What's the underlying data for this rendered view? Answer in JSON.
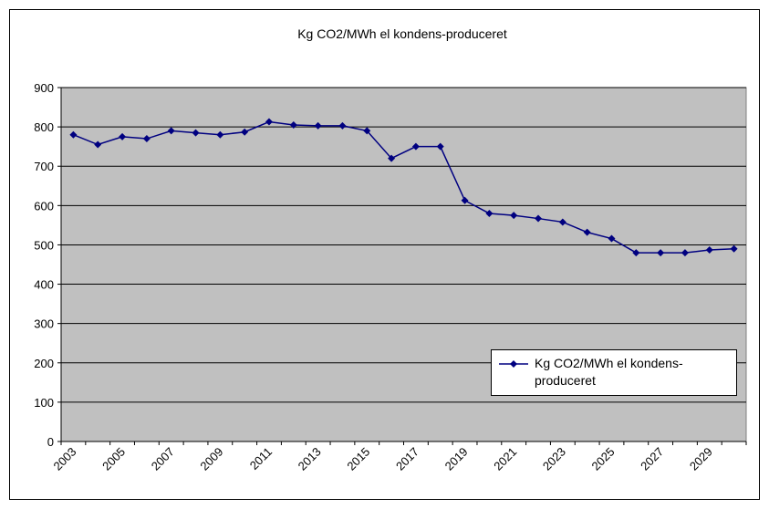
{
  "chart_data": {
    "type": "line",
    "title": "Kg CO2/MWh el kondens-produceret",
    "categories": [
      "2003",
      null,
      "2005",
      null,
      "2007",
      null,
      "2009",
      null,
      "2011",
      null,
      "2013",
      null,
      "2015",
      null,
      "2017",
      null,
      "2019",
      null,
      "2021",
      null,
      "2023",
      null,
      "2025",
      null,
      "2027",
      null,
      "2029",
      null
    ],
    "series": [
      {
        "name": "Kg CO2/MWh el kondens-produceret",
        "color": "#000080",
        "values": [
          780,
          755,
          775,
          770,
          790,
          785,
          780,
          787,
          813,
          805,
          803,
          803,
          790,
          720,
          750,
          750,
          613,
          580,
          575,
          567,
          558,
          532,
          516,
          480,
          480,
          480,
          487,
          490
        ]
      }
    ],
    "ylim": [
      0,
      900
    ],
    "yticks": [
      0,
      100,
      200,
      300,
      400,
      500,
      600,
      700,
      800,
      900
    ],
    "grid": true,
    "legend": "bottom-right",
    "plot_background": "#c0c0c0"
  }
}
